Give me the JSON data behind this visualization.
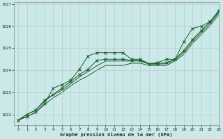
{
  "xlabel": "Graphe pression niveau de la mer (hPa)",
  "bg_color": "#caeaea",
  "grid_color": "#b8d8d8",
  "line_color": "#1a5c2a",
  "ylim": [
    1021.5,
    1027.1
  ],
  "xlim": [
    -0.5,
    23
  ],
  "yticks": [
    1022,
    1023,
    1024,
    1025,
    1026,
    1027
  ],
  "xticks": [
    0,
    1,
    2,
    3,
    4,
    5,
    6,
    7,
    8,
    9,
    10,
    11,
    12,
    13,
    14,
    15,
    16,
    17,
    18,
    19,
    20,
    21,
    22,
    23
  ],
  "series": [
    [
      1021.75,
      1021.9,
      1022.1,
      1022.5,
      1023.2,
      1023.35,
      1023.55,
      1024.05,
      1024.65,
      1024.8,
      1024.8,
      1024.8,
      1024.8,
      1024.5,
      1024.5,
      1024.3,
      1024.35,
      1024.5,
      1024.5,
      1025.3,
      1025.9,
      1026.0,
      1026.2,
      1026.7
    ],
    [
      1021.75,
      1022.0,
      1022.2,
      1022.65,
      1022.9,
      1023.2,
      1023.5,
      1023.8,
      1024.05,
      1024.45,
      1024.5,
      1024.5,
      1024.5,
      1024.45,
      1024.45,
      1024.3,
      1024.3,
      1024.35,
      1024.5,
      1024.9,
      1025.4,
      1025.8,
      1026.2,
      1026.65
    ],
    [
      1021.75,
      1022.0,
      1022.2,
      1022.6,
      1022.9,
      1023.1,
      1023.4,
      1023.7,
      1023.95,
      1024.2,
      1024.42,
      1024.42,
      1024.42,
      1024.42,
      1024.42,
      1024.28,
      1024.28,
      1024.3,
      1024.48,
      1024.82,
      1025.32,
      1025.72,
      1026.12,
      1026.62
    ],
    [
      1021.75,
      1021.9,
      1022.1,
      1022.45,
      1022.75,
      1023.0,
      1023.3,
      1023.55,
      1023.75,
      1024.0,
      1024.22,
      1024.22,
      1024.22,
      1024.32,
      1024.32,
      1024.22,
      1024.22,
      1024.22,
      1024.42,
      1024.72,
      1025.22,
      1025.62,
      1026.02,
      1026.52
    ]
  ]
}
